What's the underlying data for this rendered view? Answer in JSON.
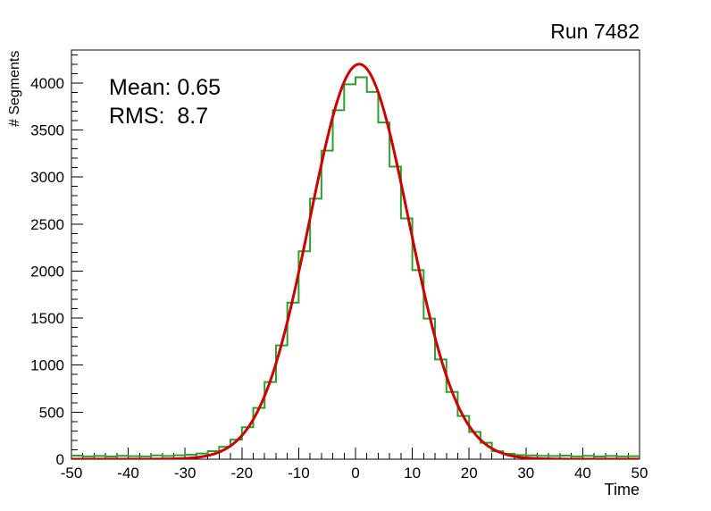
{
  "chart_data": {
    "type": "bar",
    "style": "root-step-histogram-with-gaussian-fit",
    "title": "Run 7482",
    "xlabel": "Time",
    "ylabel": "# Segments",
    "xlim": [
      -50,
      50
    ],
    "ylim": [
      0,
      4350
    ],
    "grid": false,
    "legend": "none",
    "x_major_ticks": [
      -50,
      -40,
      -30,
      -20,
      -10,
      0,
      10,
      20,
      30,
      40,
      50
    ],
    "x_minor_step": 2,
    "y_major_ticks": [
      0,
      500,
      1000,
      1500,
      2000,
      2500,
      3000,
      3500,
      4000
    ],
    "y_minor_step": 100,
    "frame_color": "#000000",
    "histogram": {
      "name": "time-distribution",
      "color": "#2f9e2f",
      "line_width": 2,
      "bin_start": -50,
      "bin_width": 2,
      "counts": [
        38,
        30,
        34,
        28,
        36,
        32,
        30,
        40,
        34,
        42,
        48,
        60,
        86,
        132,
        208,
        340,
        545,
        820,
        1210,
        1665,
        2210,
        2770,
        3280,
        3710,
        3985,
        4060,
        3905,
        3580,
        3110,
        2560,
        2010,
        1495,
        1060,
        715,
        460,
        290,
        175,
        84,
        58,
        44,
        40,
        36,
        34,
        38,
        30,
        36,
        28,
        34,
        30,
        32
      ]
    },
    "fit": {
      "name": "gaussian-fit",
      "color": "#cc0000",
      "line_width": 3,
      "amplitude": 4200,
      "mean": 0.65,
      "sigma": 8.7
    },
    "annotations": [
      {
        "text": "Mean: 0.65"
      },
      {
        "text": "RMS:  8.7"
      }
    ]
  }
}
